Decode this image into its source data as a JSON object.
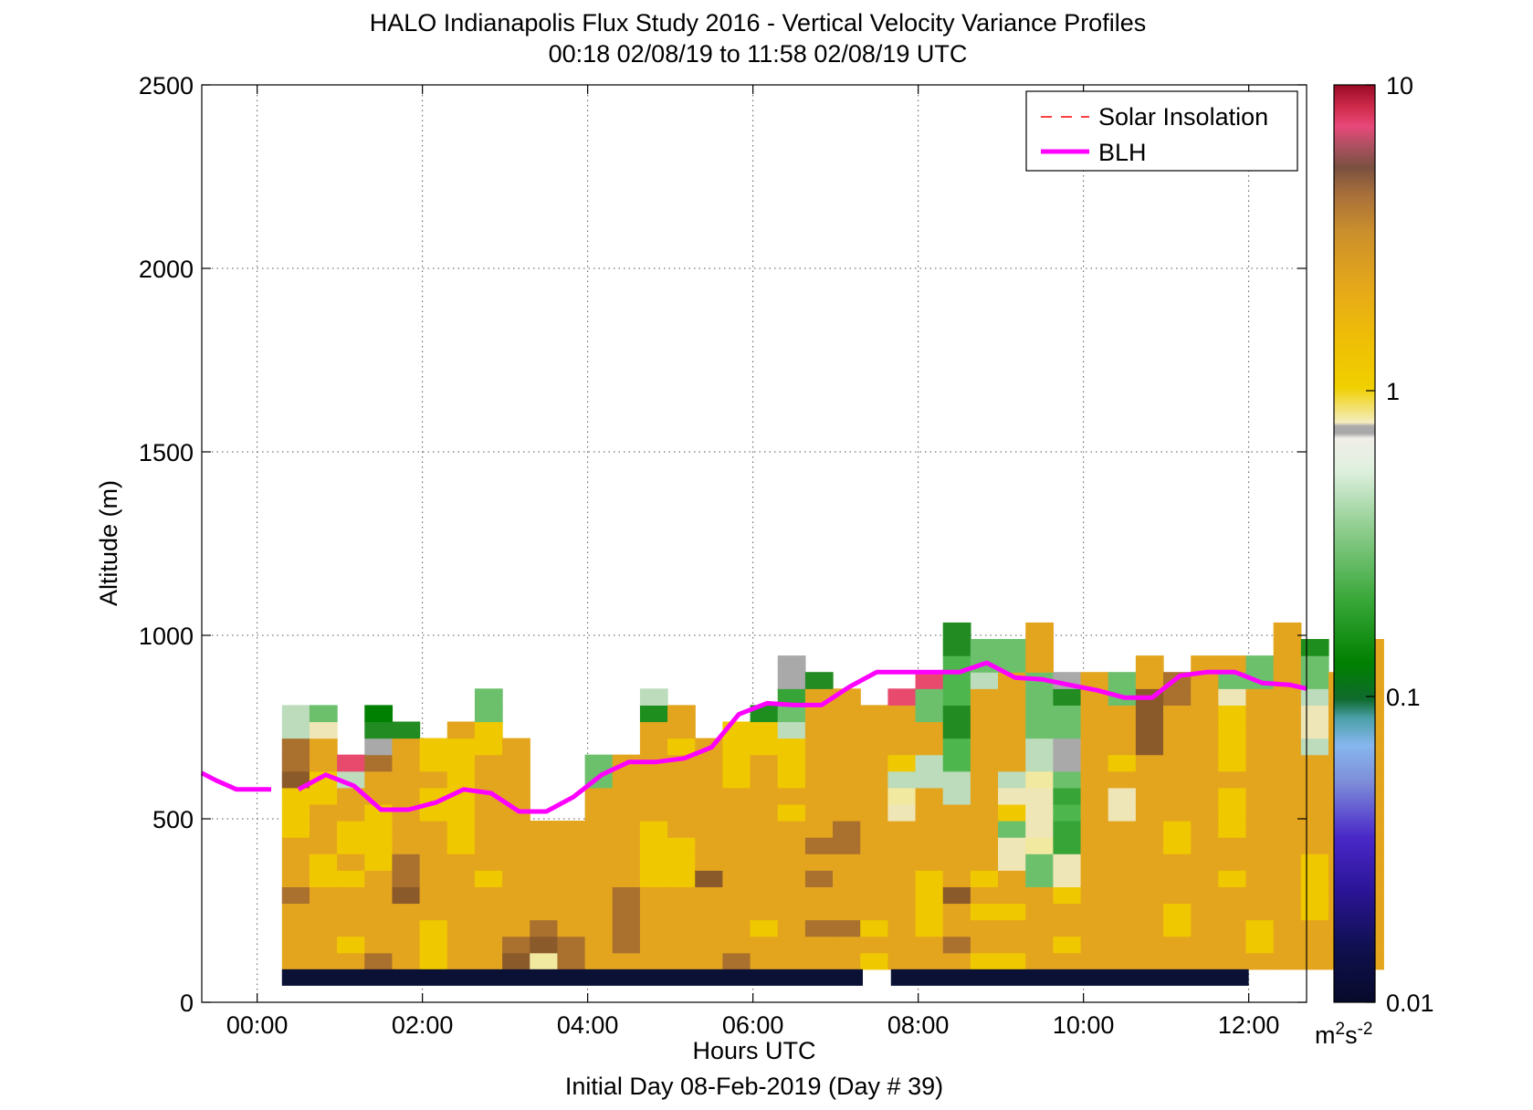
{
  "chart_data": {
    "type": "heatmap",
    "title": "HALO Indianapolis Flux Study 2016 - Vertical Velocity Variance Profiles",
    "subtitle": "00:18 02/08/19 to 11:58 02/08/19  UTC",
    "xlabel": "Hours UTC",
    "xlabel2": "Initial Day 08-Feb-2019 (Day # 39)",
    "ylabel": "Altitude (m)",
    "xlim": [
      -0.67,
      12.7
    ],
    "ylim": [
      0,
      2500
    ],
    "x_ticks": [
      0,
      2,
      4,
      6,
      8,
      10,
      12
    ],
    "x_tick_labels": [
      "00:00",
      "02:00",
      "04:00",
      "06:00",
      "08:00",
      "10:00",
      "12:00"
    ],
    "y_ticks": [
      0,
      500,
      1000,
      1500,
      2000,
      2500
    ],
    "y_tick_labels": [
      "0",
      "500",
      "1000",
      "1500",
      "2000",
      "2500"
    ],
    "grid": true,
    "legend": {
      "position": "top-right",
      "entries": [
        {
          "label": "Solar Insolation",
          "style": "dashed",
          "color": "#ff0000"
        },
        {
          "label": "BLH",
          "style": "solid",
          "color": "#ff00ff"
        }
      ]
    },
    "colorbar": {
      "scale": "log",
      "range": [
        0.01,
        10
      ],
      "tick_labels": [
        "0.01",
        "0.1",
        "1",
        "10"
      ],
      "tick_values": [
        0.01,
        0.1,
        1,
        10
      ],
      "unit_base": "m",
      "unit_sup1": "2",
      "unit_mid": "s",
      "unit_sup2": "-2"
    },
    "heatmap": {
      "x_start": 0.3,
      "x_step": 0.3333,
      "y_start": 90,
      "y_step": 45,
      "columns": [
        "BBBBCBBBAAADCCGG",
        "BBBBBAABBBAABBFH",
        "BABBBABAABBGZ",
        "CBBBBBAAAABBCKMN",
        "BBBBDCCBBBBBBBM",
        "AAABBBBBBAABAA",
        "BBBBBBBAAAAAAAB",
        "BBBBBABBBBBBBAAHH",
        "DCBBBBBBBBBBBB",
        "EDCBBBBBB",
        "CCBBBBBBB",
        "BBBBBBBBBBBHH",
        "BCCCCBBBBBBBB",
        "BBBBBAAAABBBBBBJG",
        "BBBBBAAABBBBBABB",
        "BBBBBDBBBBBBBB",
        "CBBBBBBBBBBAAAA",
        "BBABBBBBBBBBBAAJ",
        "BBBBBBBBBABAAAGHIKK",
        "BBCBBCBCBBBBBBBBBM",
        "BBCBBBBCCBBBBBBBB",
        "ABABBBBBBBBBBBBB",
        "BBBBBBBBBFEGABBBZ",
        "BBAAAABBBBBGGBBHHZ",
        "BCBBDBBBBBGGLLMMLLLMM",
        "ABBABABBBBBBBBBBBGHH",
        "ABBABBFFHAFGBBBBBBHH",
        "BBBBBHHEFFFEGGHHHHBBB",
        "BABBAFFIILIHKKHHMK",
        "BBBBBBBBBBBBBBBBBB",
        "BBBBBBBBBFFBABBBHH",
        "BBBBBBBBBBBBBDDDDBB",
        "BBAABBBAABBBBBBBCC",
        "BBBBBBBBBBBBBBBBBBB",
        "BBBBBABBAAABAAAAFHB",
        "BAABBBBBBBBBBBBBBHH",
        "BBBBBBBBBBBBBBBBBBBBB",
        "BBBAAAABBBBBBGFFGHHJ",
        "BBBBBBBBBBBBBBBBBB",
        "BBBBBBBBBBBBBBBBBBBB"
      ],
      "palette": {
        "A": "#f0c800",
        "B": "#e4a51e",
        "C": "#a9702e",
        "D": "#8b5a2b",
        "E": "#f2e9a0",
        "F": "#efe6b8",
        "G": "#bcdcbc",
        "H": "#6cc06c",
        "I": "#37a437",
        "J": "#1e8f1e",
        "K": "#a9a9a9",
        "L": "#4db64d",
        "M": "#228b22",
        "N": "#008000",
        "Z": "#e84a6e"
      }
    },
    "blh_series": {
      "name": "BLH",
      "x": [
        -0.67,
        -0.5,
        -0.25,
        0,
        0.17,
        0.5,
        0.83,
        1.17,
        1.5,
        1.83,
        2.17,
        2.5,
        2.83,
        3.17,
        3.5,
        3.83,
        4.17,
        4.5,
        4.83,
        5.17,
        5.5,
        5.83,
        6.17,
        6.5,
        6.83,
        7.17,
        7.5,
        7.83,
        8.17,
        8.5,
        8.83,
        9.17,
        9.5,
        9.83,
        10.17,
        10.5,
        10.83,
        11.17,
        11.5,
        11.83,
        12.17,
        12.5,
        12.7
      ],
      "y": [
        625,
        605,
        580,
        580,
        580,
        580,
        620,
        590,
        525,
        525,
        545,
        580,
        570,
        520,
        520,
        560,
        620,
        655,
        655,
        665,
        695,
        785,
        815,
        810,
        810,
        860,
        900,
        900,
        900,
        900,
        925,
        885,
        880,
        865,
        850,
        830,
        830,
        890,
        900,
        900,
        870,
        865,
        855
      ],
      "gap_after_index": 4
    },
    "solar_insolation_bar": {
      "segments": [
        [
          0.3,
          7.33
        ],
        [
          7.67,
          12.0
        ]
      ],
      "y_range": [
        45,
        90
      ],
      "color": "#0b1134"
    }
  }
}
